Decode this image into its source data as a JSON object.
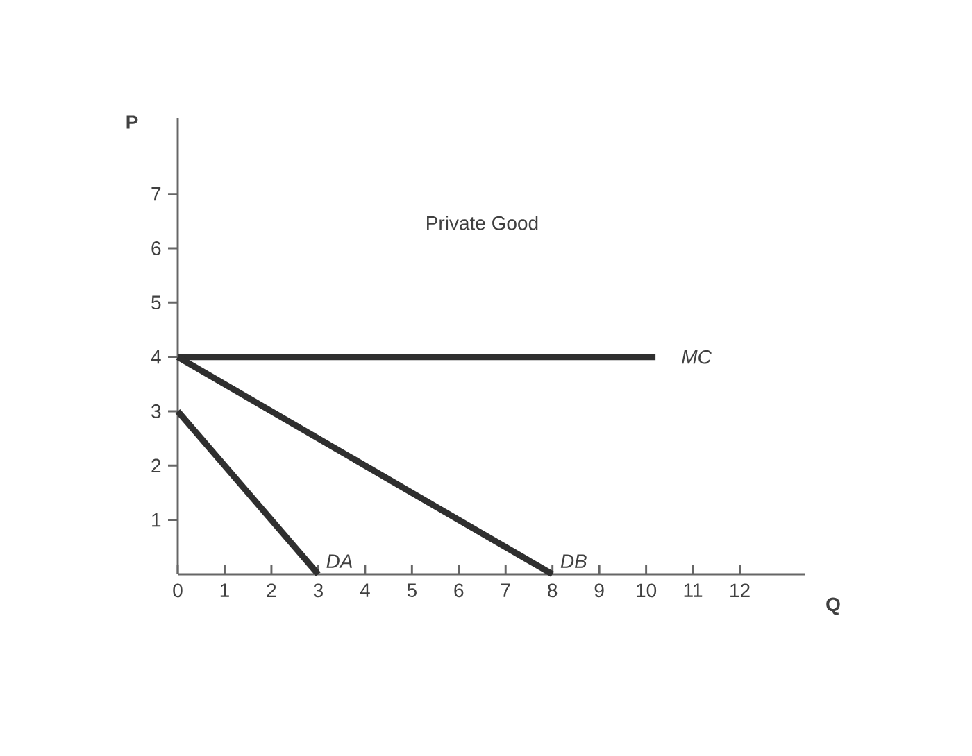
{
  "chart_data": {
    "type": "line",
    "title": "Private Good",
    "xlabel": "Q",
    "ylabel": "P",
    "xlim": [
      0,
      13.4
    ],
    "ylim": [
      0,
      8.4
    ],
    "xticks": [
      0,
      1,
      2,
      3,
      4,
      5,
      6,
      7,
      8,
      9,
      10,
      11,
      12
    ],
    "yticks": [
      1,
      2,
      3,
      4,
      5,
      6,
      7
    ],
    "series": [
      {
        "name": "MC",
        "color": "#2f2f2f",
        "x": [
          0,
          10.2
        ],
        "values": [
          4,
          4
        ]
      },
      {
        "name": "DA",
        "color": "#2f2f2f",
        "x": [
          0,
          3
        ],
        "values": [
          3,
          0
        ]
      },
      {
        "name": "DB",
        "color": "#2f2f2f",
        "x": [
          0,
          8
        ],
        "values": [
          4,
          0
        ]
      }
    ],
    "marker": "none",
    "line_style": "solid"
  }
}
